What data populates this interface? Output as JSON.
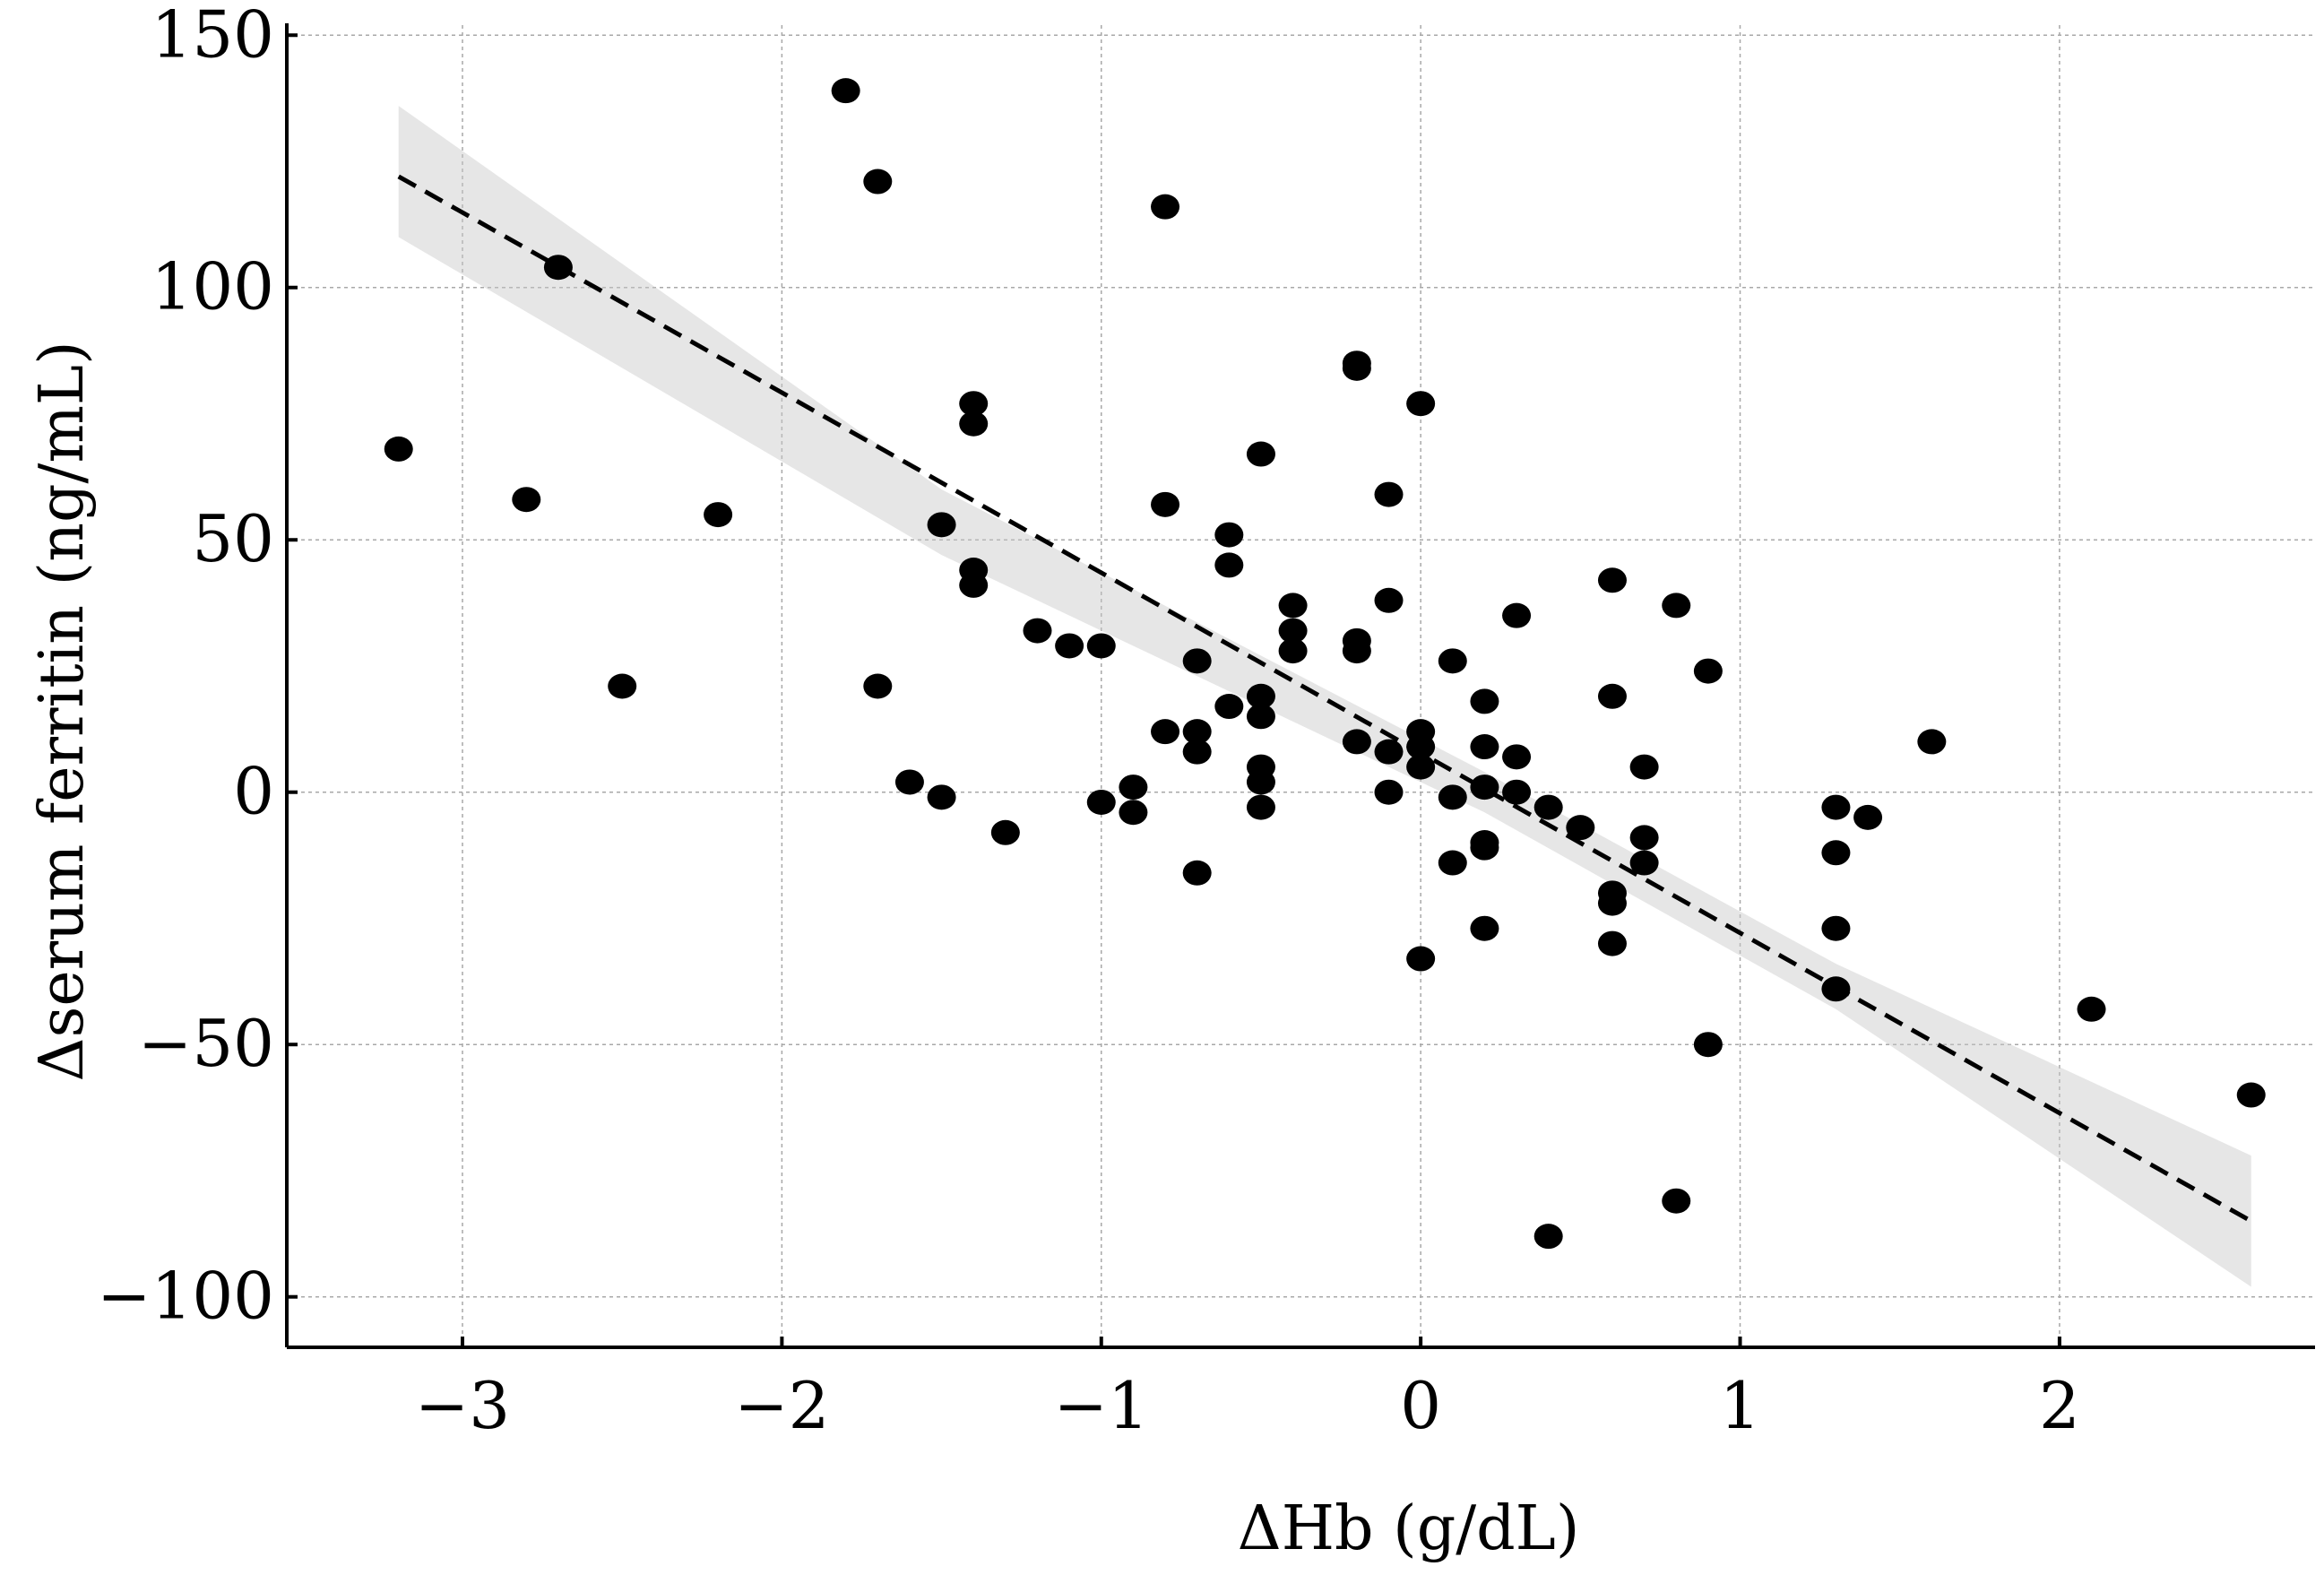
{
  "chart_data": {
    "type": "scatter",
    "xlabel": "ΔHb (g/dL)",
    "ylabel": "Δserum ferritin (ng/mL)",
    "xlim": [
      -3.55,
      2.8
    ],
    "ylim": [
      -110,
      152
    ],
    "x_ticks": [
      -3,
      -2,
      -1,
      0,
      1,
      2
    ],
    "y_ticks": [
      -100,
      -50,
      0,
      50,
      100,
      150
    ],
    "x_tick_labels": [
      "−3",
      "−2",
      "−1",
      "0",
      "1",
      "2"
    ],
    "y_tick_labels": [
      "−100",
      "−50",
      "0",
      "50",
      "100",
      "150"
    ],
    "grid": true,
    "regression": {
      "style": "dashed",
      "x": [
        -3.2,
        2.6
      ],
      "y": [
        122,
        -85
      ]
    },
    "confidence_band": {
      "x": [
        -3.2,
        -1.5,
        0.2,
        1.3,
        2.6
      ],
      "upper": [
        136,
        60,
        4,
        -34,
        -72
      ],
      "lower": [
        110,
        47,
        -4,
        -43,
        -98
      ]
    },
    "points": [
      {
        "x": -3.2,
        "y": 68
      },
      {
        "x": -2.8,
        "y": 58
      },
      {
        "x": -2.7,
        "y": 104
      },
      {
        "x": -2.5,
        "y": 21
      },
      {
        "x": -2.2,
        "y": 55
      },
      {
        "x": -1.8,
        "y": 139
      },
      {
        "x": -1.7,
        "y": 121
      },
      {
        "x": -1.7,
        "y": 21
      },
      {
        "x": -1.6,
        "y": 2
      },
      {
        "x": -1.5,
        "y": 53
      },
      {
        "x": -1.5,
        "y": -1
      },
      {
        "x": -1.4,
        "y": 77
      },
      {
        "x": -1.4,
        "y": 73
      },
      {
        "x": -1.4,
        "y": 44
      },
      {
        "x": -1.4,
        "y": 41
      },
      {
        "x": -1.3,
        "y": -8
      },
      {
        "x": -1.2,
        "y": 32
      },
      {
        "x": -1.1,
        "y": 29
      },
      {
        "x": -1.0,
        "y": 29
      },
      {
        "x": -1.0,
        "y": -2
      },
      {
        "x": -0.9,
        "y": 1
      },
      {
        "x": -0.9,
        "y": -4
      },
      {
        "x": -0.8,
        "y": 116
      },
      {
        "x": -0.8,
        "y": 57
      },
      {
        "x": -0.8,
        "y": 12
      },
      {
        "x": -0.7,
        "y": 26
      },
      {
        "x": -0.7,
        "y": 12
      },
      {
        "x": -0.7,
        "y": 8
      },
      {
        "x": -0.7,
        "y": -16
      },
      {
        "x": -0.6,
        "y": 51
      },
      {
        "x": -0.6,
        "y": 45
      },
      {
        "x": -0.6,
        "y": 17
      },
      {
        "x": -0.5,
        "y": 67
      },
      {
        "x": -0.5,
        "y": 19
      },
      {
        "x": -0.5,
        "y": 15
      },
      {
        "x": -0.5,
        "y": 5
      },
      {
        "x": -0.5,
        "y": 2
      },
      {
        "x": -0.5,
        "y": -3
      },
      {
        "x": -0.4,
        "y": 37
      },
      {
        "x": -0.4,
        "y": 32
      },
      {
        "x": -0.4,
        "y": 28
      },
      {
        "x": -0.2,
        "y": 85
      },
      {
        "x": -0.2,
        "y": 84
      },
      {
        "x": -0.2,
        "y": 30
      },
      {
        "x": -0.2,
        "y": 28
      },
      {
        "x": -0.2,
        "y": 10
      },
      {
        "x": -0.1,
        "y": 59
      },
      {
        "x": -0.1,
        "y": 38
      },
      {
        "x": -0.1,
        "y": 8
      },
      {
        "x": -0.1,
        "y": 0
      },
      {
        "x": 0.0,
        "y": 77
      },
      {
        "x": 0.0,
        "y": 12
      },
      {
        "x": 0.0,
        "y": 9
      },
      {
        "x": 0.0,
        "y": 5
      },
      {
        "x": 0.0,
        "y": -33
      },
      {
        "x": 0.1,
        "y": 26
      },
      {
        "x": 0.1,
        "y": -1
      },
      {
        "x": 0.1,
        "y": -14
      },
      {
        "x": 0.2,
        "y": 18
      },
      {
        "x": 0.2,
        "y": 9
      },
      {
        "x": 0.2,
        "y": 1
      },
      {
        "x": 0.2,
        "y": -10
      },
      {
        "x": 0.2,
        "y": -11
      },
      {
        "x": 0.2,
        "y": -27
      },
      {
        "x": 0.3,
        "y": 35
      },
      {
        "x": 0.3,
        "y": 7
      },
      {
        "x": 0.3,
        "y": 0
      },
      {
        "x": 0.4,
        "y": -3
      },
      {
        "x": 0.4,
        "y": -88
      },
      {
        "x": 0.5,
        "y": -7
      },
      {
        "x": 0.6,
        "y": 42
      },
      {
        "x": 0.6,
        "y": 19
      },
      {
        "x": 0.6,
        "y": -20
      },
      {
        "x": 0.6,
        "y": -22
      },
      {
        "x": 0.6,
        "y": -30
      },
      {
        "x": 0.7,
        "y": 5
      },
      {
        "x": 0.7,
        "y": -9
      },
      {
        "x": 0.7,
        "y": -14
      },
      {
        "x": 0.8,
        "y": 37
      },
      {
        "x": 0.8,
        "y": -81
      },
      {
        "x": 0.9,
        "y": 24
      },
      {
        "x": 0.9,
        "y": -50
      },
      {
        "x": 1.3,
        "y": -3
      },
      {
        "x": 1.3,
        "y": -12
      },
      {
        "x": 1.3,
        "y": -27
      },
      {
        "x": 1.3,
        "y": -39
      },
      {
        "x": 1.4,
        "y": -5
      },
      {
        "x": 1.6,
        "y": 10
      },
      {
        "x": 2.1,
        "y": -43
      },
      {
        "x": 2.6,
        "y": -60
      }
    ]
  }
}
